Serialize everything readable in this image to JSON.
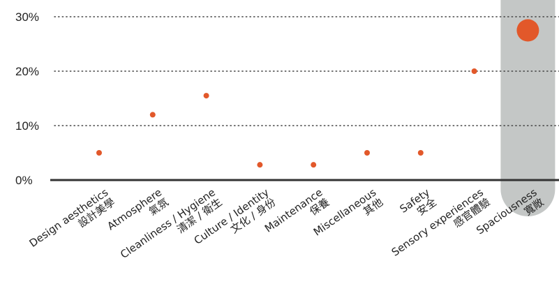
{
  "chart_data": {
    "type": "scatter",
    "title": "",
    "xlabel": "",
    "ylabel": "",
    "ylim": [
      0,
      30
    ],
    "y_ticks": [
      {
        "value": 0,
        "label": "0%"
      },
      {
        "value": 10,
        "label": "10%"
      },
      {
        "value": 20,
        "label": "20%"
      },
      {
        "value": 30,
        "label": "30%"
      }
    ],
    "grid": "dotted horizontal",
    "categories": [
      {
        "line1": "Design aesthetics",
        "line2": "設計美學",
        "value": 5,
        "highlight": false
      },
      {
        "line1": "Atmosphere",
        "line2": "氣氛",
        "value": 12,
        "highlight": false
      },
      {
        "line1": "Cleanliness / Hygiene",
        "line2": "清潔 / 衛生",
        "value": 15.5,
        "highlight": false
      },
      {
        "line1": "Culture / Identity",
        "line2": "文化 / 身份",
        "value": 2.8,
        "highlight": false
      },
      {
        "line1": "Maintenance",
        "line2": "保養",
        "value": 2.8,
        "highlight": false
      },
      {
        "line1": "Miscellaneous",
        "line2": "其他",
        "value": 5,
        "highlight": false
      },
      {
        "line1": "Safety",
        "line2": "安全",
        "value": 5,
        "highlight": false
      },
      {
        "line1": "Sensory experiences",
        "line2": "感官體驗",
        "value": 20,
        "highlight": false
      },
      {
        "line1": "Spaciousness",
        "line2": "寬敞",
        "value": 27.5,
        "highlight": true
      }
    ],
    "colors": {
      "point": "#e2582a",
      "highlight_text": "#e2582a",
      "highlight_band": "#c4c7c6",
      "axis": "#333333",
      "grid": "#444444",
      "text": "#222222"
    }
  }
}
